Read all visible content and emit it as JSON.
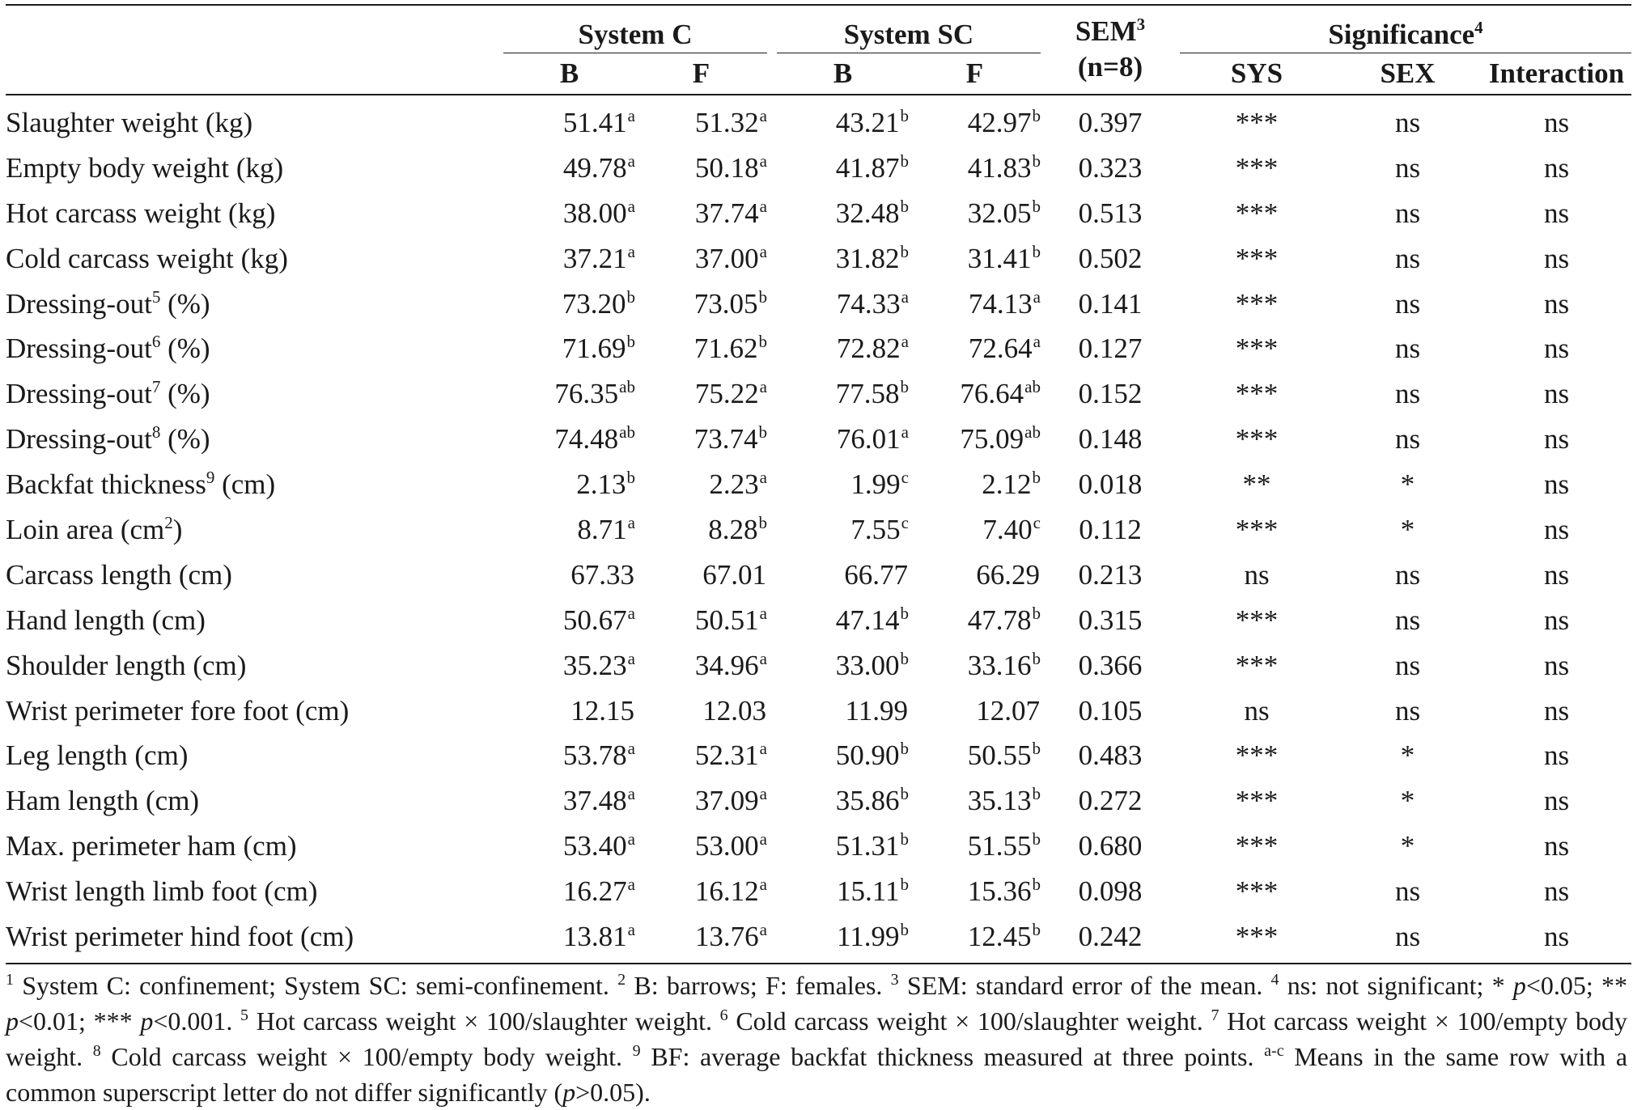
{
  "headers": {
    "group_c": "System C",
    "group_sc": "System SC",
    "sem_line1": "SEM",
    "sem_sup": "3",
    "sem_line2": "(n=8)",
    "significance": "Significance",
    "significance_sup": "4",
    "b": "B",
    "f": "F",
    "sys": "SYS",
    "sex": "SEX",
    "interaction": "Interaction"
  },
  "rows": [
    {
      "label": "Slaughter weight (kg)",
      "label_sup": "",
      "label_tail": "",
      "cb": "51.41",
      "cb_sup": "a",
      "cf": "51.32",
      "cf_sup": "a",
      "sb": "43.21",
      "sb_sup": "b",
      "sf": "42.97",
      "sf_sup": "b",
      "sem": "0.397",
      "sys": "***",
      "sex": "ns",
      "int": "ns"
    },
    {
      "label": "Empty body weight (kg)",
      "label_sup": "",
      "label_tail": "",
      "cb": "49.78",
      "cb_sup": "a",
      "cf": "50.18",
      "cf_sup": "a",
      "sb": "41.87",
      "sb_sup": "b",
      "sf": "41.83",
      "sf_sup": "b",
      "sem": "0.323",
      "sys": "***",
      "sex": "ns",
      "int": "ns"
    },
    {
      "label": "Hot carcass weight (kg)",
      "label_sup": "",
      "label_tail": "",
      "cb": "38.00",
      "cb_sup": "a",
      "cf": "37.74",
      "cf_sup": "a",
      "sb": "32.48",
      "sb_sup": "b",
      "sf": "32.05",
      "sf_sup": "b",
      "sem": "0.513",
      "sys": "***",
      "sex": "ns",
      "int": "ns"
    },
    {
      "label": "Cold carcass weight (kg)",
      "label_sup": "",
      "label_tail": "",
      "cb": "37.21",
      "cb_sup": "a",
      "cf": "37.00",
      "cf_sup": "a",
      "sb": "31.82",
      "sb_sup": "b",
      "sf": "31.41",
      "sf_sup": "b",
      "sem": "0.502",
      "sys": "***",
      "sex": "ns",
      "int": "ns"
    },
    {
      "label": "Dressing-out",
      "label_sup": "5",
      "label_tail": " (%)",
      "cb": "73.20",
      "cb_sup": "b",
      "cf": "73.05",
      "cf_sup": "b",
      "sb": "74.33",
      "sb_sup": "a",
      "sf": "74.13",
      "sf_sup": "a",
      "sem": "0.141",
      "sys": "***",
      "sex": "ns",
      "int": "ns"
    },
    {
      "label": "Dressing-out",
      "label_sup": "6",
      "label_tail": " (%)",
      "cb": "71.69",
      "cb_sup": "b",
      "cf": "71.62",
      "cf_sup": "b",
      "sb": "72.82",
      "sb_sup": "a",
      "sf": "72.64",
      "sf_sup": "a",
      "sem": "0.127",
      "sys": "***",
      "sex": "ns",
      "int": "ns"
    },
    {
      "label": "Dressing-out",
      "label_sup": "7",
      "label_tail": " (%)",
      "cb": "76.35",
      "cb_sup": "ab",
      "cf": "75.22",
      "cf_sup": "a",
      "sb": "77.58",
      "sb_sup": "b",
      "sf": "76.64",
      "sf_sup": "ab",
      "sem": "0.152",
      "sys": "***",
      "sex": "ns",
      "int": "ns"
    },
    {
      "label": "Dressing-out",
      "label_sup": "8",
      "label_tail": " (%)",
      "cb": "74.48",
      "cb_sup": "ab",
      "cf": "73.74",
      "cf_sup": "b",
      "sb": "76.01",
      "sb_sup": "a",
      "sf": "75.09",
      "sf_sup": "ab",
      "sem": "0.148",
      "sys": "***",
      "sex": "ns",
      "int": "ns"
    },
    {
      "label": "Backfat thickness",
      "label_sup": "9",
      "label_tail": " (cm)",
      "cb": "2.13",
      "cb_sup": "b",
      "cf": "2.23",
      "cf_sup": "a",
      "sb": "1.99",
      "sb_sup": "c",
      "sf": "2.12",
      "sf_sup": "b",
      "sem": "0.018",
      "sys": "**",
      "sex": "*",
      "int": "ns"
    },
    {
      "label": "Loin area (cm",
      "label_sup": "2",
      "label_tail": ")",
      "cb": "8.71",
      "cb_sup": "a",
      "cf": "8.28",
      "cf_sup": "b",
      "sb": "7.55",
      "sb_sup": "c",
      "sf": "7.40",
      "sf_sup": "c",
      "sem": "0.112",
      "sys": "***",
      "sex": "*",
      "int": "ns"
    },
    {
      "label": "Carcass length (cm)",
      "label_sup": "",
      "label_tail": "",
      "cb": "67.33",
      "cb_sup": "",
      "cf": "67.01",
      "cf_sup": "",
      "sb": "66.77",
      "sb_sup": "",
      "sf": "66.29",
      "sf_sup": "",
      "sem": "0.213",
      "sys": "ns",
      "sex": "ns",
      "int": "ns"
    },
    {
      "label": "Hand length (cm)",
      "label_sup": "",
      "label_tail": "",
      "cb": "50.67",
      "cb_sup": "a",
      "cf": "50.51",
      "cf_sup": "a",
      "sb": "47.14",
      "sb_sup": "b",
      "sf": "47.78",
      "sf_sup": "b",
      "sem": "0.315",
      "sys": "***",
      "sex": "ns",
      "int": "ns"
    },
    {
      "label": "Shoulder length (cm)",
      "label_sup": "",
      "label_tail": "",
      "cb": "35.23",
      "cb_sup": "a",
      "cf": "34.96",
      "cf_sup": "a",
      "sb": "33.00",
      "sb_sup": "b",
      "sf": "33.16",
      "sf_sup": "b",
      "sem": "0.366",
      "sys": "***",
      "sex": "ns",
      "int": "ns"
    },
    {
      "label": "Wrist perimeter fore foot (cm)",
      "label_sup": "",
      "label_tail": "",
      "cb": "12.15",
      "cb_sup": "",
      "cf": "12.03",
      "cf_sup": "",
      "sb": "11.99",
      "sb_sup": "",
      "sf": "12.07",
      "sf_sup": "",
      "sem": "0.105",
      "sys": "ns",
      "sex": "ns",
      "int": "ns"
    },
    {
      "label": "Leg length (cm)",
      "label_sup": "",
      "label_tail": "",
      "cb": "53.78",
      "cb_sup": "a",
      "cf": "52.31",
      "cf_sup": "a",
      "sb": "50.90",
      "sb_sup": "b",
      "sf": "50.55",
      "sf_sup": "b",
      "sem": "0.483",
      "sys": "***",
      "sex": "*",
      "int": "ns"
    },
    {
      "label": "Ham length (cm)",
      "label_sup": "",
      "label_tail": "",
      "cb": "37.48",
      "cb_sup": "a",
      "cf": "37.09",
      "cf_sup": "a",
      "sb": "35.86",
      "sb_sup": "b",
      "sf": "35.13",
      "sf_sup": "b",
      "sem": "0.272",
      "sys": "***",
      "sex": "*",
      "int": "ns"
    },
    {
      "label": "Max. perimeter ham (cm)",
      "label_sup": "",
      "label_tail": "",
      "cb": "53.40",
      "cb_sup": "a",
      "cf": "53.00",
      "cf_sup": "a",
      "sb": "51.31",
      "sb_sup": "b",
      "sf": "51.55",
      "sf_sup": "b",
      "sem": "0.680",
      "sys": "***",
      "sex": "*",
      "int": "ns"
    },
    {
      "label": "Wrist length limb foot (cm)",
      "label_sup": "",
      "label_tail": "",
      "cb": "16.27",
      "cb_sup": "a",
      "cf": "16.12",
      "cf_sup": "a",
      "sb": "15.11",
      "sb_sup": "b",
      "sf": "15.36",
      "sf_sup": "b",
      "sem": "0.098",
      "sys": "***",
      "sex": "ns",
      "int": "ns"
    },
    {
      "label": "Wrist perimeter hind foot (cm)",
      "label_sup": "",
      "label_tail": "",
      "cb": "13.81",
      "cb_sup": "a",
      "cf": "13.76",
      "cf_sup": "a",
      "sb": "11.99",
      "sb_sup": "b",
      "sf": "12.45",
      "sf_sup": "b",
      "sem": "0.242",
      "sys": "***",
      "sex": "ns",
      "int": "ns"
    }
  ],
  "footnote": {
    "s1": "1",
    "t1": " System C: confinement; System SC: semi-confinement. ",
    "s2": "2",
    "t2": " B: barrows; F: females. ",
    "s3": "3",
    "t3": " SEM: standard error of the mean. ",
    "s4": "4",
    "t4a": " ns: not significant; * ",
    "p": "p",
    "t4b": "<0.05; ** ",
    "t4c": "<0.01; *** ",
    "t4d": "<0.001. ",
    "s5": "5",
    "t5": " Hot carcass weight × 100/slaughter weight. ",
    "s6": "6",
    "t6": " Cold carcass weight × 100/slaughter weight. ",
    "s7": "7",
    "t7": " Hot carcass weight × 100/empty body weight. ",
    "s8": "8",
    "t8": " Cold carcass weight × 100/empty body weight. ",
    "s9": "9",
    "t9": " BF: average backfat thickness measured at three points. ",
    "sac": "a-c",
    "tac": " Means in the same row with a common superscript letter do not differ significantly (",
    "tac_end": ">0.05)."
  }
}
